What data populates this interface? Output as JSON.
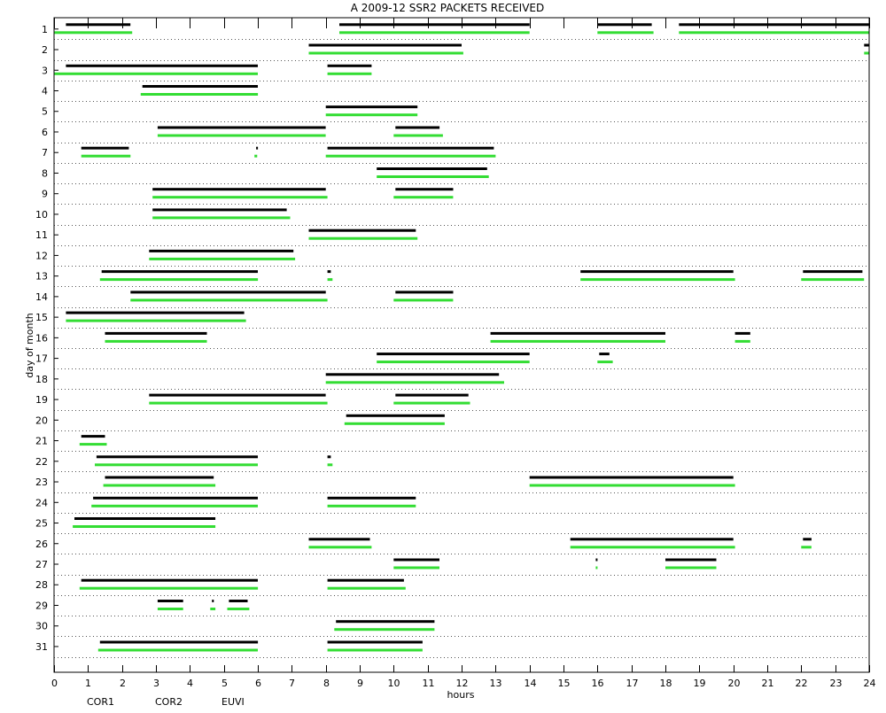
{
  "chart_data": {
    "type": "timeline",
    "title": "A  2009-12 SSR2 PACKETS RECEIVED",
    "xlabel": "hours",
    "ylabel": "day of month",
    "xlim": [
      0,
      24
    ],
    "x_ticks": [
      "0",
      "1",
      "2",
      "3",
      "4",
      "5",
      "6",
      "7",
      "8",
      "9",
      "10",
      "11",
      "12",
      "13",
      "14",
      "15",
      "16",
      "17",
      "18",
      "19",
      "20",
      "21",
      "22",
      "23",
      "24"
    ],
    "days": [
      "1",
      "2",
      "3",
      "4",
      "5",
      "6",
      "7",
      "8",
      "9",
      "10",
      "11",
      "12",
      "13",
      "14",
      "15",
      "16",
      "17",
      "18",
      "19",
      "20",
      "21",
      "22",
      "23",
      "24",
      "25",
      "26",
      "27",
      "28",
      "29",
      "30",
      "31"
    ],
    "grid": "dotted-horizontal",
    "legend": [
      {
        "name": "COR1",
        "color": "#000000"
      },
      {
        "name": "COR2",
        "color": "#cc0000"
      },
      {
        "name": "EUVI",
        "color": "#33cc33"
      }
    ],
    "series_colors": {
      "COR1": "#000000",
      "EUVI": "#33dd33"
    },
    "intervals": {
      "COR1": [
        [
          1,
          0.35,
          2.25
        ],
        [
          1,
          8.4,
          14.0
        ],
        [
          1,
          16.0,
          17.6
        ],
        [
          1,
          18.4,
          24.0
        ],
        [
          2,
          7.5,
          12.0
        ],
        [
          2,
          23.85,
          24.0
        ],
        [
          3,
          0.35,
          6.0
        ],
        [
          3,
          8.05,
          9.35
        ],
        [
          4,
          2.6,
          6.0
        ],
        [
          5,
          8.0,
          10.7
        ],
        [
          6,
          3.05,
          8.0
        ],
        [
          6,
          10.05,
          11.35
        ],
        [
          7,
          0.8,
          2.2
        ],
        [
          7,
          5.95,
          5.98
        ],
        [
          7,
          8.05,
          12.95
        ],
        [
          8,
          9.5,
          12.75
        ],
        [
          9,
          2.9,
          8.0
        ],
        [
          9,
          10.05,
          11.75
        ],
        [
          10,
          2.9,
          6.85
        ],
        [
          11,
          7.5,
          10.65
        ],
        [
          12,
          2.8,
          7.05
        ],
        [
          13,
          1.4,
          6.0
        ],
        [
          13,
          8.05,
          8.15
        ],
        [
          13,
          15.5,
          20.0
        ],
        [
          13,
          22.05,
          23.8
        ],
        [
          14,
          2.25,
          8.0
        ],
        [
          14,
          10.05,
          11.75
        ],
        [
          15,
          0.35,
          5.6
        ],
        [
          16,
          1.5,
          4.5
        ],
        [
          16,
          12.85,
          18.0
        ],
        [
          16,
          20.05,
          20.5
        ],
        [
          17,
          9.5,
          14.0
        ],
        [
          17,
          16.05,
          16.35
        ],
        [
          18,
          8.0,
          13.1
        ],
        [
          19,
          2.8,
          8.0
        ],
        [
          19,
          10.05,
          12.2
        ],
        [
          20,
          8.6,
          11.5
        ],
        [
          21,
          0.8,
          1.5
        ],
        [
          22,
          1.25,
          6.0
        ],
        [
          22,
          8.05,
          8.15
        ],
        [
          23,
          1.5,
          4.7
        ],
        [
          23,
          14.0,
          20.0
        ],
        [
          24,
          1.15,
          6.0
        ],
        [
          24,
          8.05,
          10.65
        ],
        [
          25,
          0.6,
          4.75
        ],
        [
          26,
          7.5,
          9.3
        ],
        [
          26,
          15.2,
          20.0
        ],
        [
          26,
          22.05,
          22.3
        ],
        [
          27,
          10.0,
          11.35
        ],
        [
          27,
          15.95,
          15.98
        ],
        [
          27,
          18.0,
          19.5
        ],
        [
          28,
          0.8,
          6.0
        ],
        [
          28,
          8.05,
          10.3
        ],
        [
          29,
          3.05,
          3.8
        ],
        [
          29,
          4.65,
          4.7
        ],
        [
          29,
          5.15,
          5.7
        ],
        [
          30,
          8.3,
          11.2
        ],
        [
          31,
          1.35,
          6.0
        ],
        [
          31,
          8.05,
          10.85
        ]
      ],
      "EUVI": [
        [
          1,
          0.0,
          2.3
        ],
        [
          1,
          8.4,
          14.0
        ],
        [
          1,
          16.0,
          17.65
        ],
        [
          1,
          18.4,
          24.0
        ],
        [
          2,
          7.5,
          12.05
        ],
        [
          2,
          23.85,
          24.0
        ],
        [
          3,
          0.0,
          6.0
        ],
        [
          3,
          8.05,
          9.35
        ],
        [
          4,
          2.55,
          6.0
        ],
        [
          5,
          8.0,
          10.7
        ],
        [
          6,
          3.05,
          8.0
        ],
        [
          6,
          10.0,
          11.45
        ],
        [
          7,
          0.8,
          2.25
        ],
        [
          7,
          5.9,
          5.98
        ],
        [
          7,
          8.0,
          13.0
        ],
        [
          8,
          9.5,
          12.8
        ],
        [
          9,
          2.9,
          8.05
        ],
        [
          9,
          10.0,
          11.75
        ],
        [
          10,
          2.9,
          6.95
        ],
        [
          11,
          7.5,
          10.7
        ],
        [
          12,
          2.8,
          7.1
        ],
        [
          13,
          1.35,
          6.0
        ],
        [
          13,
          8.05,
          8.2
        ],
        [
          13,
          15.5,
          20.05
        ],
        [
          13,
          22.0,
          23.85
        ],
        [
          14,
          2.25,
          8.05
        ],
        [
          14,
          10.0,
          11.75
        ],
        [
          15,
          0.35,
          5.65
        ],
        [
          16,
          1.5,
          4.5
        ],
        [
          16,
          12.85,
          18.0
        ],
        [
          16,
          20.05,
          20.5
        ],
        [
          17,
          9.5,
          14.0
        ],
        [
          17,
          16.0,
          16.45
        ],
        [
          18,
          8.0,
          13.25
        ],
        [
          19,
          2.8,
          8.05
        ],
        [
          19,
          10.0,
          12.25
        ],
        [
          20,
          8.55,
          11.5
        ],
        [
          21,
          0.75,
          1.55
        ],
        [
          22,
          1.2,
          6.0
        ],
        [
          22,
          8.05,
          8.2
        ],
        [
          23,
          1.45,
          4.75
        ],
        [
          23,
          14.0,
          20.05
        ],
        [
          24,
          1.1,
          6.0
        ],
        [
          24,
          8.05,
          10.65
        ],
        [
          25,
          0.55,
          4.75
        ],
        [
          26,
          7.5,
          9.35
        ],
        [
          26,
          15.2,
          20.05
        ],
        [
          26,
          22.0,
          22.3
        ],
        [
          27,
          10.0,
          11.35
        ],
        [
          27,
          15.95,
          16.0
        ],
        [
          27,
          18.0,
          19.5
        ],
        [
          28,
          0.75,
          6.0
        ],
        [
          28,
          8.05,
          10.35
        ],
        [
          29,
          3.05,
          3.8
        ],
        [
          29,
          4.6,
          4.75
        ],
        [
          29,
          5.1,
          5.75
        ],
        [
          30,
          8.25,
          11.2
        ],
        [
          31,
          1.3,
          6.0
        ],
        [
          31,
          8.05,
          10.85
        ]
      ]
    }
  }
}
